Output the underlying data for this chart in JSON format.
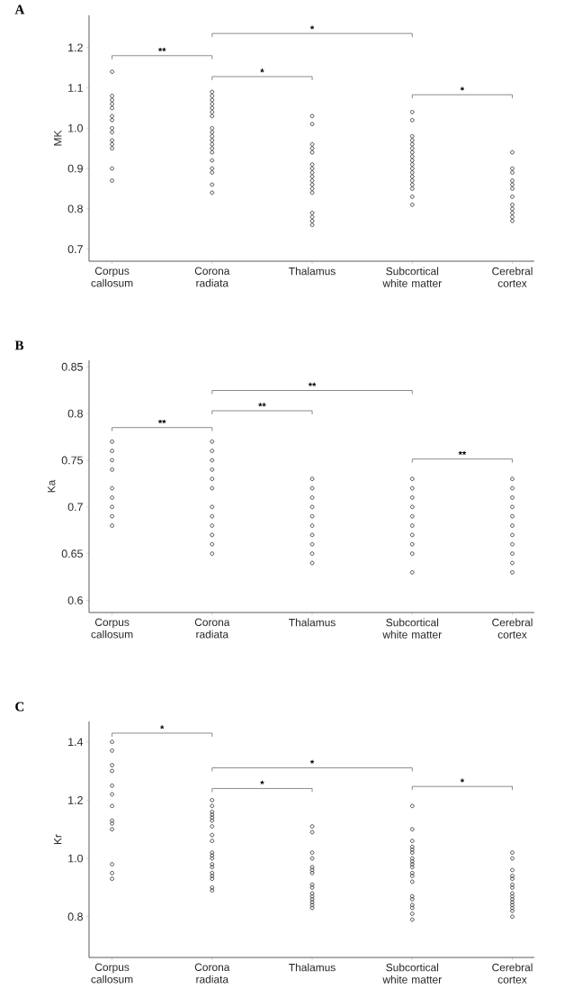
{
  "chart_data": [
    {
      "type": "scatter",
      "title": "A",
      "ylabel": "MK",
      "marker": "circle",
      "grid": false,
      "categories": [
        "Corpus callosum",
        "Corona radiata",
        "Thalamus",
        "Subcortical white matter",
        "Cerebral cortex"
      ],
      "ylim": [
        0.67,
        1.28
      ],
      "yticks": [
        0.7,
        0.8,
        0.9,
        {
          "value": 1.0,
          "label": "1.0"
        },
        1.1,
        1.2
      ],
      "annotations": [
        "**",
        "*",
        "*",
        "*"
      ],
      "series": [
        {
          "color": "#333333",
          "x": [
            "Corpus callosum",
            "Corpus callosum",
            "Corpus callosum",
            "Corpus callosum",
            "Corpus callosum",
            "Corpus callosum",
            "Corpus callosum",
            "Corpus callosum",
            "Corpus callosum",
            "Corpus callosum",
            "Corpus callosum",
            "Corpus callosum",
            "Corpus callosum",
            "Corpus callosum"
          ],
          "values": [
            1.14,
            1.08,
            1.07,
            1.06,
            1.05,
            1.03,
            1.02,
            1.0,
            0.99,
            0.97,
            0.96,
            0.95,
            0.9,
            0.87
          ]
        },
        {
          "color": "#333333",
          "x": [
            "Corona radiata",
            "Corona radiata",
            "Corona radiata",
            "Corona radiata",
            "Corona radiata",
            "Corona radiata",
            "Corona radiata",
            "Corona radiata",
            "Corona radiata",
            "Corona radiata",
            "Corona radiata",
            "Corona radiata",
            "Corona radiata",
            "Corona radiata",
            "Corona radiata",
            "Corona radiata",
            "Corona radiata",
            "Corona radiata",
            "Corona radiata"
          ],
          "values": [
            1.09,
            1.08,
            1.07,
            1.06,
            1.05,
            1.04,
            1.03,
            1.0,
            0.99,
            0.98,
            0.97,
            0.96,
            0.95,
            0.94,
            0.92,
            0.9,
            0.89,
            0.86,
            0.84
          ]
        },
        {
          "color": "#333333",
          "x": [
            "Thalamus",
            "Thalamus",
            "Thalamus",
            "Thalamus",
            "Thalamus",
            "Thalamus",
            "Thalamus",
            "Thalamus",
            "Thalamus",
            "Thalamus",
            "Thalamus",
            "Thalamus",
            "Thalamus",
            "Thalamus",
            "Thalamus",
            "Thalamus",
            "Thalamus"
          ],
          "values": [
            1.03,
            1.01,
            0.96,
            0.95,
            0.94,
            0.91,
            0.9,
            0.89,
            0.88,
            0.87,
            0.86,
            0.85,
            0.84,
            0.79,
            0.78,
            0.77,
            0.76
          ]
        },
        {
          "color": "#333333",
          "x": [
            "Subcortical white matter",
            "Subcortical white matter",
            "Subcortical white matter",
            "Subcortical white matter",
            "Subcortical white matter",
            "Subcortical white matter",
            "Subcortical white matter",
            "Subcortical white matter",
            "Subcortical white matter",
            "Subcortical white matter",
            "Subcortical white matter",
            "Subcortical white matter",
            "Subcortical white matter",
            "Subcortical white matter",
            "Subcortical white matter",
            "Subcortical white matter",
            "Subcortical white matter",
            "Subcortical white matter"
          ],
          "values": [
            1.04,
            1.02,
            0.98,
            0.97,
            0.96,
            0.95,
            0.94,
            0.93,
            0.92,
            0.91,
            0.9,
            0.89,
            0.88,
            0.87,
            0.86,
            0.85,
            0.83,
            0.81
          ]
        },
        {
          "color": "#333333",
          "x": [
            "Cerebral cortex",
            "Cerebral cortex",
            "Cerebral cortex",
            "Cerebral cortex",
            "Cerebral cortex",
            "Cerebral cortex",
            "Cerebral cortex",
            "Cerebral cortex",
            "Cerebral cortex",
            "Cerebral cortex",
            "Cerebral cortex",
            "Cerebral cortex"
          ],
          "values": [
            0.94,
            0.9,
            0.89,
            0.87,
            0.86,
            0.85,
            0.83,
            0.81,
            0.8,
            0.79,
            0.78,
            0.77
          ]
        }
      ]
    },
    {
      "type": "scatter",
      "title": "B",
      "ylabel": "Ka",
      "marker": "circle",
      "grid": false,
      "categories": [
        "Corpus callosum",
        "Corona radiata",
        "Thalamus",
        "Subcortical white matter",
        "Cerebral cortex"
      ],
      "ylim": [
        0.587,
        0.857
      ],
      "yticks": [
        0.6,
        0.65,
        0.7,
        0.75,
        0.8,
        0.85
      ],
      "annotations": [
        "**",
        "**",
        "**",
        "**"
      ],
      "series": [
        {
          "color": "#333333",
          "x": [
            "Corpus callosum",
            "Corpus callosum",
            "Corpus callosum",
            "Corpus callosum",
            "Corpus callosum",
            "Corpus callosum",
            "Corpus callosum",
            "Corpus callosum",
            "Corpus callosum"
          ],
          "values": [
            0.77,
            0.76,
            0.75,
            0.74,
            0.72,
            0.71,
            0.7,
            0.69,
            0.68
          ]
        },
        {
          "color": "#333333",
          "x": [
            "Corona radiata",
            "Corona radiata",
            "Corona radiata",
            "Corona radiata",
            "Corona radiata",
            "Corona radiata",
            "Corona radiata",
            "Corona radiata",
            "Corona radiata",
            "Corona radiata",
            "Corona radiata",
            "Corona radiata"
          ],
          "values": [
            0.77,
            0.76,
            0.75,
            0.74,
            0.73,
            0.72,
            0.7,
            0.69,
            0.68,
            0.67,
            0.66,
            0.65
          ]
        },
        {
          "color": "#333333",
          "x": [
            "Thalamus",
            "Thalamus",
            "Thalamus",
            "Thalamus",
            "Thalamus",
            "Thalamus",
            "Thalamus",
            "Thalamus",
            "Thalamus",
            "Thalamus"
          ],
          "values": [
            0.73,
            0.72,
            0.71,
            0.7,
            0.69,
            0.68,
            0.67,
            0.66,
            0.65,
            0.64
          ]
        },
        {
          "color": "#333333",
          "x": [
            "Subcortical white matter",
            "Subcortical white matter",
            "Subcortical white matter",
            "Subcortical white matter",
            "Subcortical white matter",
            "Subcortical white matter",
            "Subcortical white matter",
            "Subcortical white matter",
            "Subcortical white matter",
            "Subcortical white matter"
          ],
          "values": [
            0.73,
            0.72,
            0.71,
            0.7,
            0.69,
            0.68,
            0.67,
            0.66,
            0.65,
            0.63
          ]
        },
        {
          "color": "#333333",
          "x": [
            "Cerebral cortex",
            "Cerebral cortex",
            "Cerebral cortex",
            "Cerebral cortex",
            "Cerebral cortex",
            "Cerebral cortex",
            "Cerebral cortex",
            "Cerebral cortex",
            "Cerebral cortex",
            "Cerebral cortex",
            "Cerebral cortex"
          ],
          "values": [
            0.73,
            0.72,
            0.71,
            0.7,
            0.69,
            0.68,
            0.67,
            0.66,
            0.65,
            0.64,
            0.63
          ]
        }
      ]
    },
    {
      "type": "scatter",
      "title": "C",
      "ylabel": "Kr",
      "marker": "circle",
      "grid": false,
      "categories": [
        "Corpus callosum",
        "Corona radiata",
        "Thalamus",
        "Subcortical white matter",
        "Cerebral cortex"
      ],
      "ylim": [
        0.66,
        1.47
      ],
      "yticks": [
        0.8,
        {
          "value": 1.0,
          "label": "1.0"
        },
        1.2,
        1.4
      ],
      "annotations": [
        "*",
        "*",
        "*",
        "*"
      ],
      "series": [
        {
          "color": "#333333",
          "x": [
            "Corpus callosum",
            "Corpus callosum",
            "Corpus callosum",
            "Corpus callosum",
            "Corpus callosum",
            "Corpus callosum",
            "Corpus callosum",
            "Corpus callosum",
            "Corpus callosum",
            "Corpus callosum",
            "Corpus callosum",
            "Corpus callosum",
            "Corpus callosum"
          ],
          "values": [
            1.4,
            1.37,
            1.32,
            1.3,
            1.25,
            1.22,
            1.18,
            1.13,
            1.12,
            1.1,
            0.98,
            0.95,
            0.93
          ]
        },
        {
          "color": "#333333",
          "x": [
            "Corona radiata",
            "Corona radiata",
            "Corona radiata",
            "Corona radiata",
            "Corona radiata",
            "Corona radiata",
            "Corona radiata",
            "Corona radiata",
            "Corona radiata",
            "Corona radiata",
            "Corona radiata",
            "Corona radiata",
            "Corona radiata",
            "Corona radiata",
            "Corona radiata",
            "Corona radiata",
            "Corona radiata",
            "Corona radiata",
            "Corona radiata"
          ],
          "values": [
            1.2,
            1.18,
            1.16,
            1.15,
            1.14,
            1.13,
            1.11,
            1.08,
            1.06,
            1.02,
            1.01,
            1.0,
            0.98,
            0.97,
            0.95,
            0.94,
            0.93,
            0.9,
            0.89
          ]
        },
        {
          "color": "#333333",
          "x": [
            "Thalamus",
            "Thalamus",
            "Thalamus",
            "Thalamus",
            "Thalamus",
            "Thalamus",
            "Thalamus",
            "Thalamus",
            "Thalamus",
            "Thalamus",
            "Thalamus",
            "Thalamus",
            "Thalamus",
            "Thalamus",
            "Thalamus"
          ],
          "values": [
            1.11,
            1.09,
            1.02,
            1.0,
            0.97,
            0.96,
            0.95,
            0.91,
            0.9,
            0.88,
            0.87,
            0.86,
            0.85,
            0.84,
            0.83
          ]
        },
        {
          "color": "#333333",
          "x": [
            "Subcortical white matter",
            "Subcortical white matter",
            "Subcortical white matter",
            "Subcortical white matter",
            "Subcortical white matter",
            "Subcortical white matter",
            "Subcortical white matter",
            "Subcortical white matter",
            "Subcortical white matter",
            "Subcortical white matter",
            "Subcortical white matter",
            "Subcortical white matter",
            "Subcortical white matter",
            "Subcortical white matter",
            "Subcortical white matter",
            "Subcortical white matter",
            "Subcortical white matter",
            "Subcortical white matter",
            "Subcortical white matter"
          ],
          "values": [
            1.18,
            1.1,
            1.06,
            1.04,
            1.03,
            1.02,
            1.0,
            0.99,
            0.98,
            0.97,
            0.95,
            0.94,
            0.92,
            0.87,
            0.86,
            0.84,
            0.83,
            0.81,
            0.79
          ]
        },
        {
          "color": "#333333",
          "x": [
            "Cerebral cortex",
            "Cerebral cortex",
            "Cerebral cortex",
            "Cerebral cortex",
            "Cerebral cortex",
            "Cerebral cortex",
            "Cerebral cortex",
            "Cerebral cortex",
            "Cerebral cortex",
            "Cerebral cortex",
            "Cerebral cortex",
            "Cerebral cortex",
            "Cerebral cortex",
            "Cerebral cortex",
            "Cerebral cortex"
          ],
          "values": [
            1.02,
            1.0,
            0.96,
            0.94,
            0.93,
            0.91,
            0.9,
            0.88,
            0.87,
            0.86,
            0.85,
            0.84,
            0.83,
            0.82,
            0.8
          ]
        }
      ]
    }
  ]
}
